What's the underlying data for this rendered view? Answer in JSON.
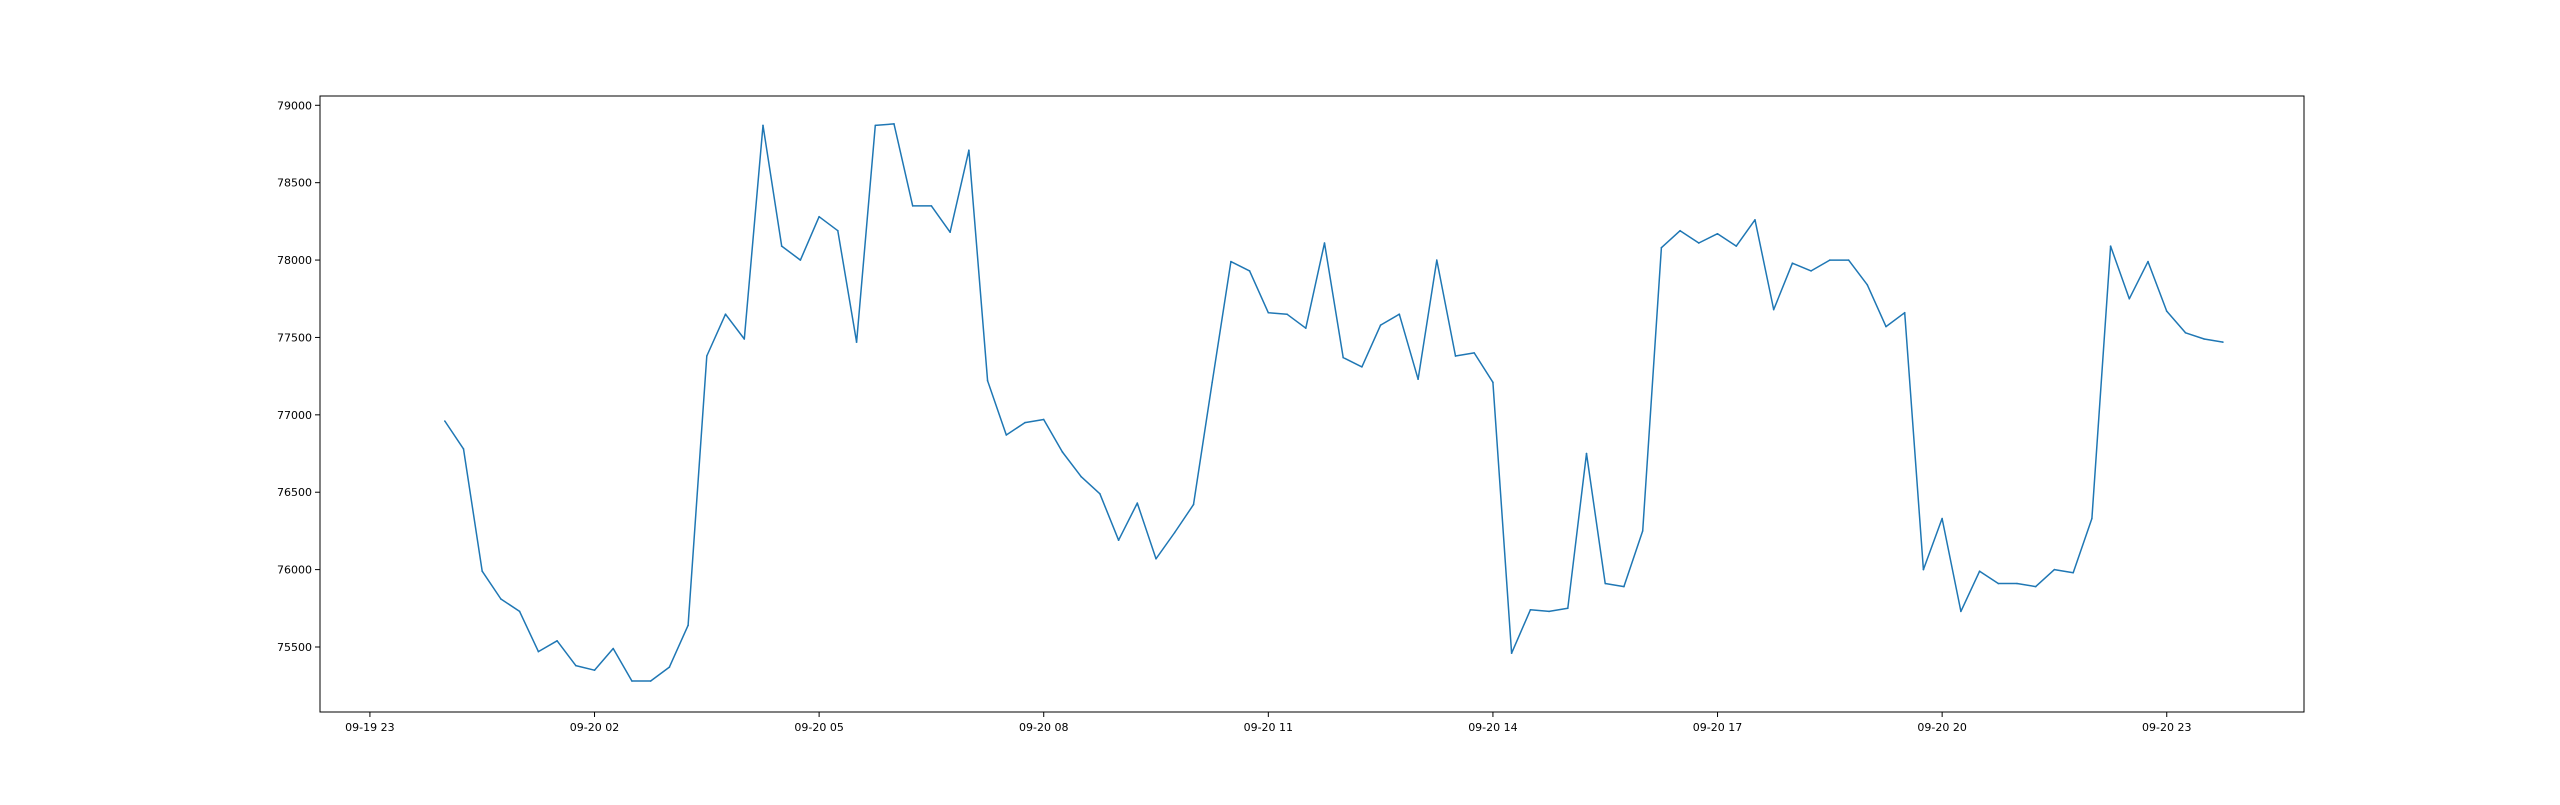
{
  "chart_data": {
    "type": "line",
    "title": "",
    "xlabel": "",
    "ylabel": "",
    "xlim": [
      "2024-09-19 22:20",
      "2024-09-21 00:50"
    ],
    "ylim": [
      75080,
      79060
    ],
    "grid": false,
    "legend": "none",
    "x_tick_labels": [
      {
        "t": "2024-09-19 23:00",
        "label": "09-19 23"
      },
      {
        "t": "2024-09-20 02:00",
        "label": "09-20 02"
      },
      {
        "t": "2024-09-20 05:00",
        "label": "09-20 05"
      },
      {
        "t": "2024-09-20 08:00",
        "label": "09-20 08"
      },
      {
        "t": "2024-09-20 11:00",
        "label": "09-20 11"
      },
      {
        "t": "2024-09-20 14:00",
        "label": "09-20 14"
      },
      {
        "t": "2024-09-20 17:00",
        "label": "09-20 17"
      },
      {
        "t": "2024-09-20 20:00",
        "label": "09-20 20"
      },
      {
        "t": "2024-09-20 23:00",
        "label": "09-20 23"
      }
    ],
    "y_tick_labels": [
      {
        "v": 75500,
        "label": "75500"
      },
      {
        "v": 76000,
        "label": "76000"
      },
      {
        "v": 76500,
        "label": "76500"
      },
      {
        "v": 77000,
        "label": "77000"
      },
      {
        "v": 77500,
        "label": "77500"
      },
      {
        "v": 78000,
        "label": "78000"
      },
      {
        "v": 78500,
        "label": "78500"
      },
      {
        "v": 79000,
        "label": "79000"
      }
    ],
    "series": [
      {
        "color": "#1f77b4",
        "x": [
          "2024-09-20 00:00",
          "2024-09-20 00:15",
          "2024-09-20 00:30",
          "2024-09-20 00:45",
          "2024-09-20 01:00",
          "2024-09-20 01:15",
          "2024-09-20 01:30",
          "2024-09-20 01:45",
          "2024-09-20 02:00",
          "2024-09-20 02:15",
          "2024-09-20 02:30",
          "2024-09-20 02:45",
          "2024-09-20 03:00",
          "2024-09-20 03:15",
          "2024-09-20 03:30",
          "2024-09-20 03:45",
          "2024-09-20 04:00",
          "2024-09-20 04:15",
          "2024-09-20 04:30",
          "2024-09-20 04:45",
          "2024-09-20 05:00",
          "2024-09-20 05:15",
          "2024-09-20 05:30",
          "2024-09-20 05:45",
          "2024-09-20 06:00",
          "2024-09-20 06:15",
          "2024-09-20 06:30",
          "2024-09-20 06:45",
          "2024-09-20 07:00",
          "2024-09-20 07:15",
          "2024-09-20 07:30",
          "2024-09-20 07:45",
          "2024-09-20 08:00",
          "2024-09-20 08:15",
          "2024-09-20 08:30",
          "2024-09-20 08:45",
          "2024-09-20 09:00",
          "2024-09-20 09:15",
          "2024-09-20 09:30",
          "2024-09-20 09:45",
          "2024-09-20 10:00",
          "2024-09-20 10:15",
          "2024-09-20 10:30",
          "2024-09-20 10:45",
          "2024-09-20 11:00",
          "2024-09-20 11:15",
          "2024-09-20 11:30",
          "2024-09-20 11:45",
          "2024-09-20 12:00",
          "2024-09-20 12:15",
          "2024-09-20 12:30",
          "2024-09-20 12:45",
          "2024-09-20 13:00",
          "2024-09-20 13:15",
          "2024-09-20 13:30",
          "2024-09-20 13:45",
          "2024-09-20 14:00",
          "2024-09-20 14:15",
          "2024-09-20 14:30",
          "2024-09-20 14:45",
          "2024-09-20 15:00",
          "2024-09-20 15:15",
          "2024-09-20 15:30",
          "2024-09-20 15:45",
          "2024-09-20 16:00",
          "2024-09-20 16:15",
          "2024-09-20 16:30",
          "2024-09-20 16:45",
          "2024-09-20 17:00",
          "2024-09-20 17:15",
          "2024-09-20 17:30",
          "2024-09-20 17:45",
          "2024-09-20 18:00",
          "2024-09-20 18:15",
          "2024-09-20 18:30",
          "2024-09-20 18:45",
          "2024-09-20 19:00",
          "2024-09-20 19:15",
          "2024-09-20 19:30",
          "2024-09-20 19:45",
          "2024-09-20 20:00",
          "2024-09-20 20:15",
          "2024-09-20 20:30",
          "2024-09-20 20:45",
          "2024-09-20 21:00",
          "2024-09-20 21:15",
          "2024-09-20 21:30",
          "2024-09-20 21:45",
          "2024-09-20 22:00",
          "2024-09-20 22:15",
          "2024-09-20 22:30",
          "2024-09-20 22:45",
          "2024-09-20 23:00",
          "2024-09-20 23:15",
          "2024-09-20 23:30",
          "2024-09-20 23:45"
        ],
        "y": [
          76960,
          76780,
          75990,
          75810,
          75730,
          75470,
          75540,
          75380,
          75350,
          75490,
          75280,
          75280,
          75370,
          75640,
          77380,
          77650,
          77490,
          78870,
          78090,
          78000,
          78280,
          78190,
          77470,
          78870,
          78880,
          78350,
          78350,
          78180,
          78710,
          77220,
          76870,
          76950,
          76970,
          76760,
          76600,
          76490,
          76190,
          76430,
          76070,
          76240,
          76420,
          77210,
          77990,
          77930,
          77660,
          77650,
          77560,
          78110,
          77370,
          77310,
          77580,
          77650,
          77230,
          78000,
          77380,
          77400,
          77210,
          75460,
          75740,
          75730,
          75750,
          76750,
          75910,
          75890,
          76250,
          78080,
          78190,
          78110,
          78170,
          78090,
          78260,
          77680,
          77980,
          77930,
          78000,
          78000,
          77840,
          77570,
          77660,
          76000,
          76330,
          75730,
          75990,
          75910,
          75910,
          75890,
          76000,
          75980,
          76330,
          78090,
          77750,
          77990,
          77670,
          77530,
          77490,
          77470
        ]
      }
    ]
  }
}
